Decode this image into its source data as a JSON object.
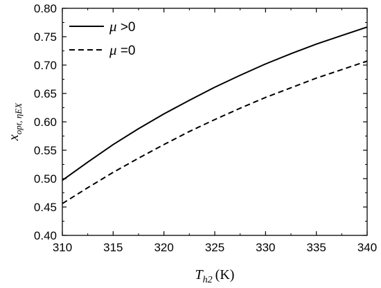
{
  "chart_data": {
    "type": "line",
    "xlabel": {
      "main": "T",
      "sub": "h2",
      "unit": "(K)"
    },
    "ylabel": {
      "main": "x",
      "sub": "opt, ηEX"
    },
    "xlim": [
      310,
      340
    ],
    "ylim": [
      0.4,
      0.8
    ],
    "xticks": [
      "310",
      "315",
      "320",
      "325",
      "330",
      "335",
      "340"
    ],
    "yticks": [
      "0.40",
      "0.45",
      "0.50",
      "0.55",
      "0.60",
      "0.65",
      "0.70",
      "0.75",
      "0.80"
    ],
    "grid": false,
    "legend_position": "top-left",
    "x": [
      310,
      312.5,
      315,
      317.5,
      320,
      322.5,
      325,
      327.5,
      330,
      332.5,
      335,
      337.5,
      340
    ],
    "series": [
      {
        "name": "μ >0",
        "legend_symbol": "μ",
        "legend_text": " >0",
        "style": "solid",
        "color": "#000000",
        "values": [
          0.497,
          0.529,
          0.56,
          0.588,
          0.614,
          0.638,
          0.661,
          0.682,
          0.702,
          0.72,
          0.737,
          0.752,
          0.767
        ]
      },
      {
        "name": "μ =0",
        "legend_symbol": "μ",
        "legend_text": " =0",
        "style": "dashed",
        "color": "#000000",
        "values": [
          0.456,
          0.484,
          0.511,
          0.536,
          0.56,
          0.583,
          0.604,
          0.624,
          0.643,
          0.66,
          0.677,
          0.692,
          0.707
        ]
      }
    ]
  }
}
